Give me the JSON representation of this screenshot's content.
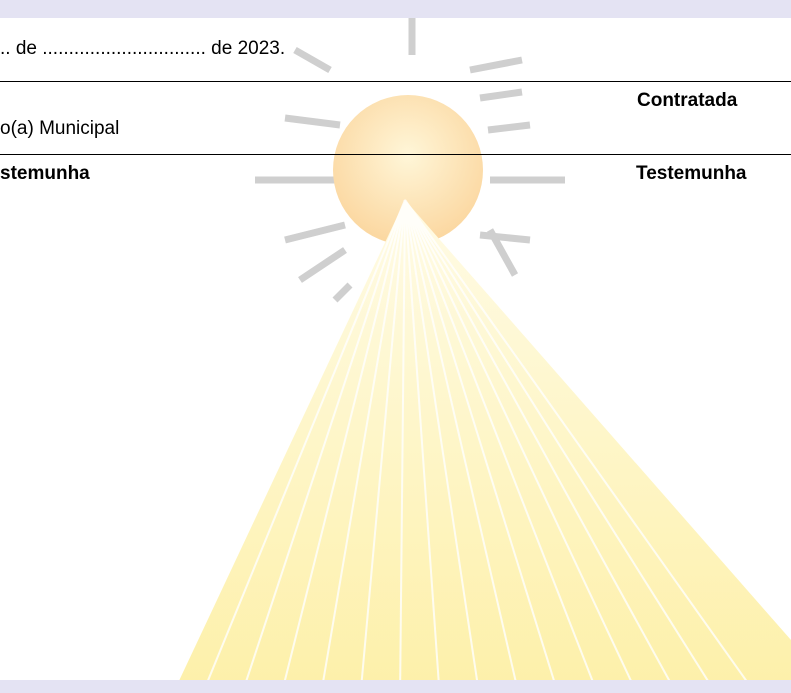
{
  "date_line": ".. de ............................... de 2023.",
  "signatures": [
    {
      "left": "o(a) Municipal",
      "right": "Contratada"
    },
    {
      "left": "stemunha",
      "right": "Testemunha"
    }
  ]
}
